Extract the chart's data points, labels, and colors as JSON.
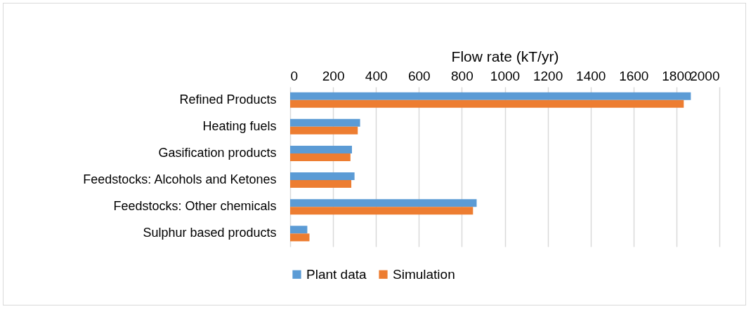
{
  "chart_data": {
    "type": "bar",
    "orientation": "horizontal",
    "xlabel": "Flow rate (kT/yr)",
    "categories": [
      "Refined Products",
      "Heating fuels",
      "Gasification products",
      "Feedstocks: Alcohols and Ketones",
      "Feedstocks: Other chemicals",
      "Sulphur based products"
    ],
    "series": [
      {
        "name": "Plant data",
        "color": "#5b9bd5",
        "values": [
          1867,
          326,
          288,
          300,
          869,
          80
        ]
      },
      {
        "name": "Simulation",
        "color": "#ed7d31",
        "values": [
          1834,
          315,
          281,
          285,
          852,
          90
        ]
      }
    ],
    "xlim": [
      0,
      2000
    ],
    "xticks": [
      0,
      200,
      400,
      600,
      800,
      1000,
      1200,
      1400,
      1600,
      1800,
      2000
    ],
    "grid": "x",
    "legend": "bottom"
  }
}
